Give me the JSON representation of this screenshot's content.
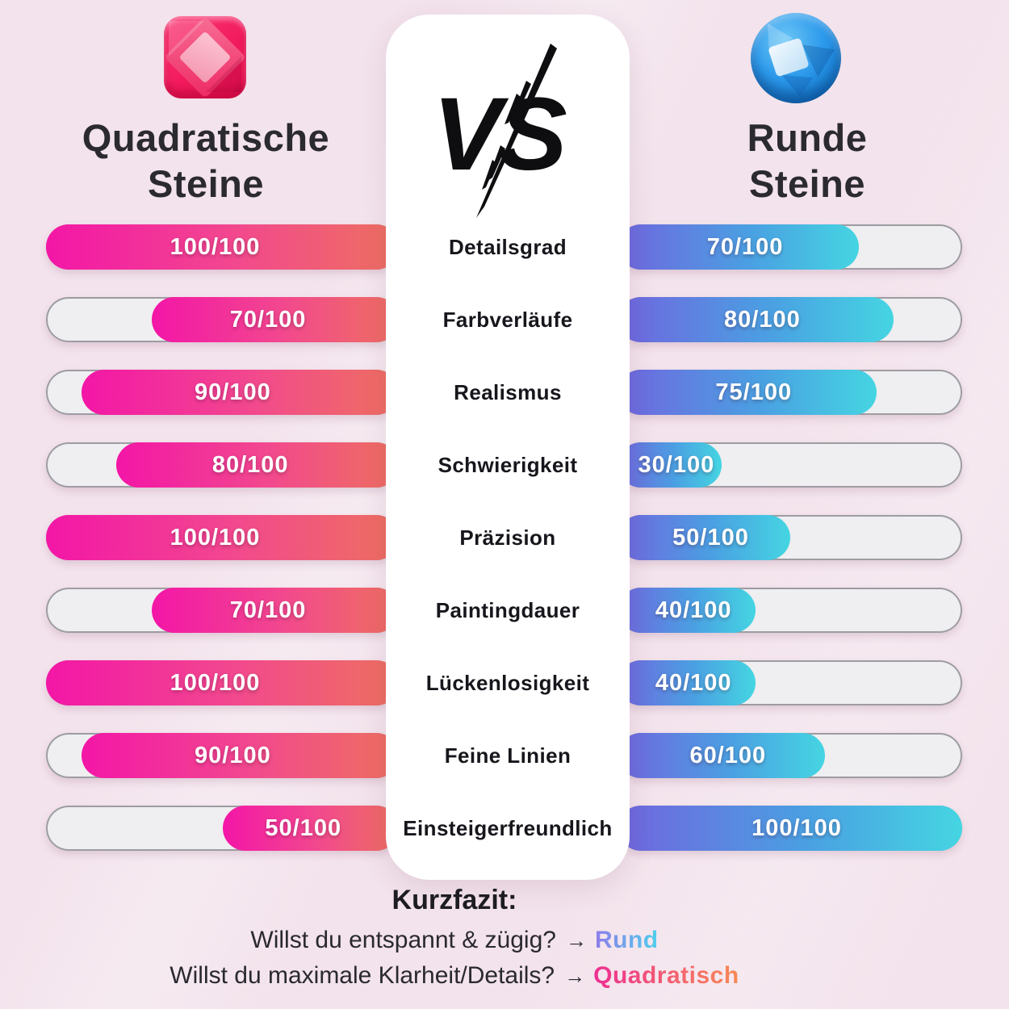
{
  "header": {
    "left": {
      "title_line1": "Quadratische",
      "title_line2": "Steine",
      "icon": "square-gem-icon"
    },
    "center": {
      "vs_label": "VS",
      "icon": "vs-icon"
    },
    "right": {
      "title_line1": "Runde",
      "title_line2": "Steine",
      "icon": "round-gem-icon"
    }
  },
  "chart_data": {
    "type": "bar",
    "orientation": "horizontal-mirrored",
    "categories": [
      "Detailsgrad",
      "Farbverläufe",
      "Realismus",
      "Schwierigkeit",
      "Präzision",
      "Paintingdauer",
      "Lückenlosigkeit",
      "Feine Linien",
      "Einsteigerfreundlich"
    ],
    "series": [
      {
        "name": "Quadratische Steine",
        "side": "left",
        "values": [
          100,
          70,
          90,
          80,
          100,
          70,
          100,
          90,
          50
        ],
        "value_labels": [
          "100/100",
          "70/100",
          "90/100",
          "80/100",
          "100/100",
          "70/100",
          "100/100",
          "90/100",
          "50/100"
        ]
      },
      {
        "name": "Runde Steine",
        "side": "right",
        "values": [
          70,
          80,
          75,
          30,
          50,
          40,
          40,
          60,
          100
        ],
        "value_labels": [
          "70/100",
          "80/100",
          "75/100",
          "30/100",
          "50/100",
          "40/100",
          "40/100",
          "60/100",
          "100/100"
        ]
      }
    ],
    "value_max": 100,
    "value_suffix": "/100",
    "legend_position": "top",
    "grid": false
  },
  "conclusion": {
    "heading": "Kurzfazit:",
    "lines": [
      {
        "text": "Willst du entspannt & zügig?",
        "arrow": "→",
        "highlight": "Rund",
        "highlight_colors": [
          "#8e7cea",
          "#4fd0ec"
        ]
      },
      {
        "text": "Willst du maximale Klarheit/Details?",
        "arrow": "→",
        "highlight": "Quadratisch",
        "highlight_colors": [
          "#ee2f92",
          "#f78a55"
        ]
      }
    ]
  },
  "colors": {
    "background": "#f3e3ec",
    "panel": "#ffffff",
    "track": "#efeef0",
    "track_border": "#9d9ca2",
    "left_bar_start": "#f316a7",
    "left_bar_mid": "#f2478f",
    "left_bar_end": "#ee7060",
    "right_bar_start": "#7166df",
    "right_bar_mid": "#4aa0e2",
    "right_bar_end": "#45d5e2",
    "title_text": "#2b2a30",
    "bar_text": "#ffffff"
  }
}
